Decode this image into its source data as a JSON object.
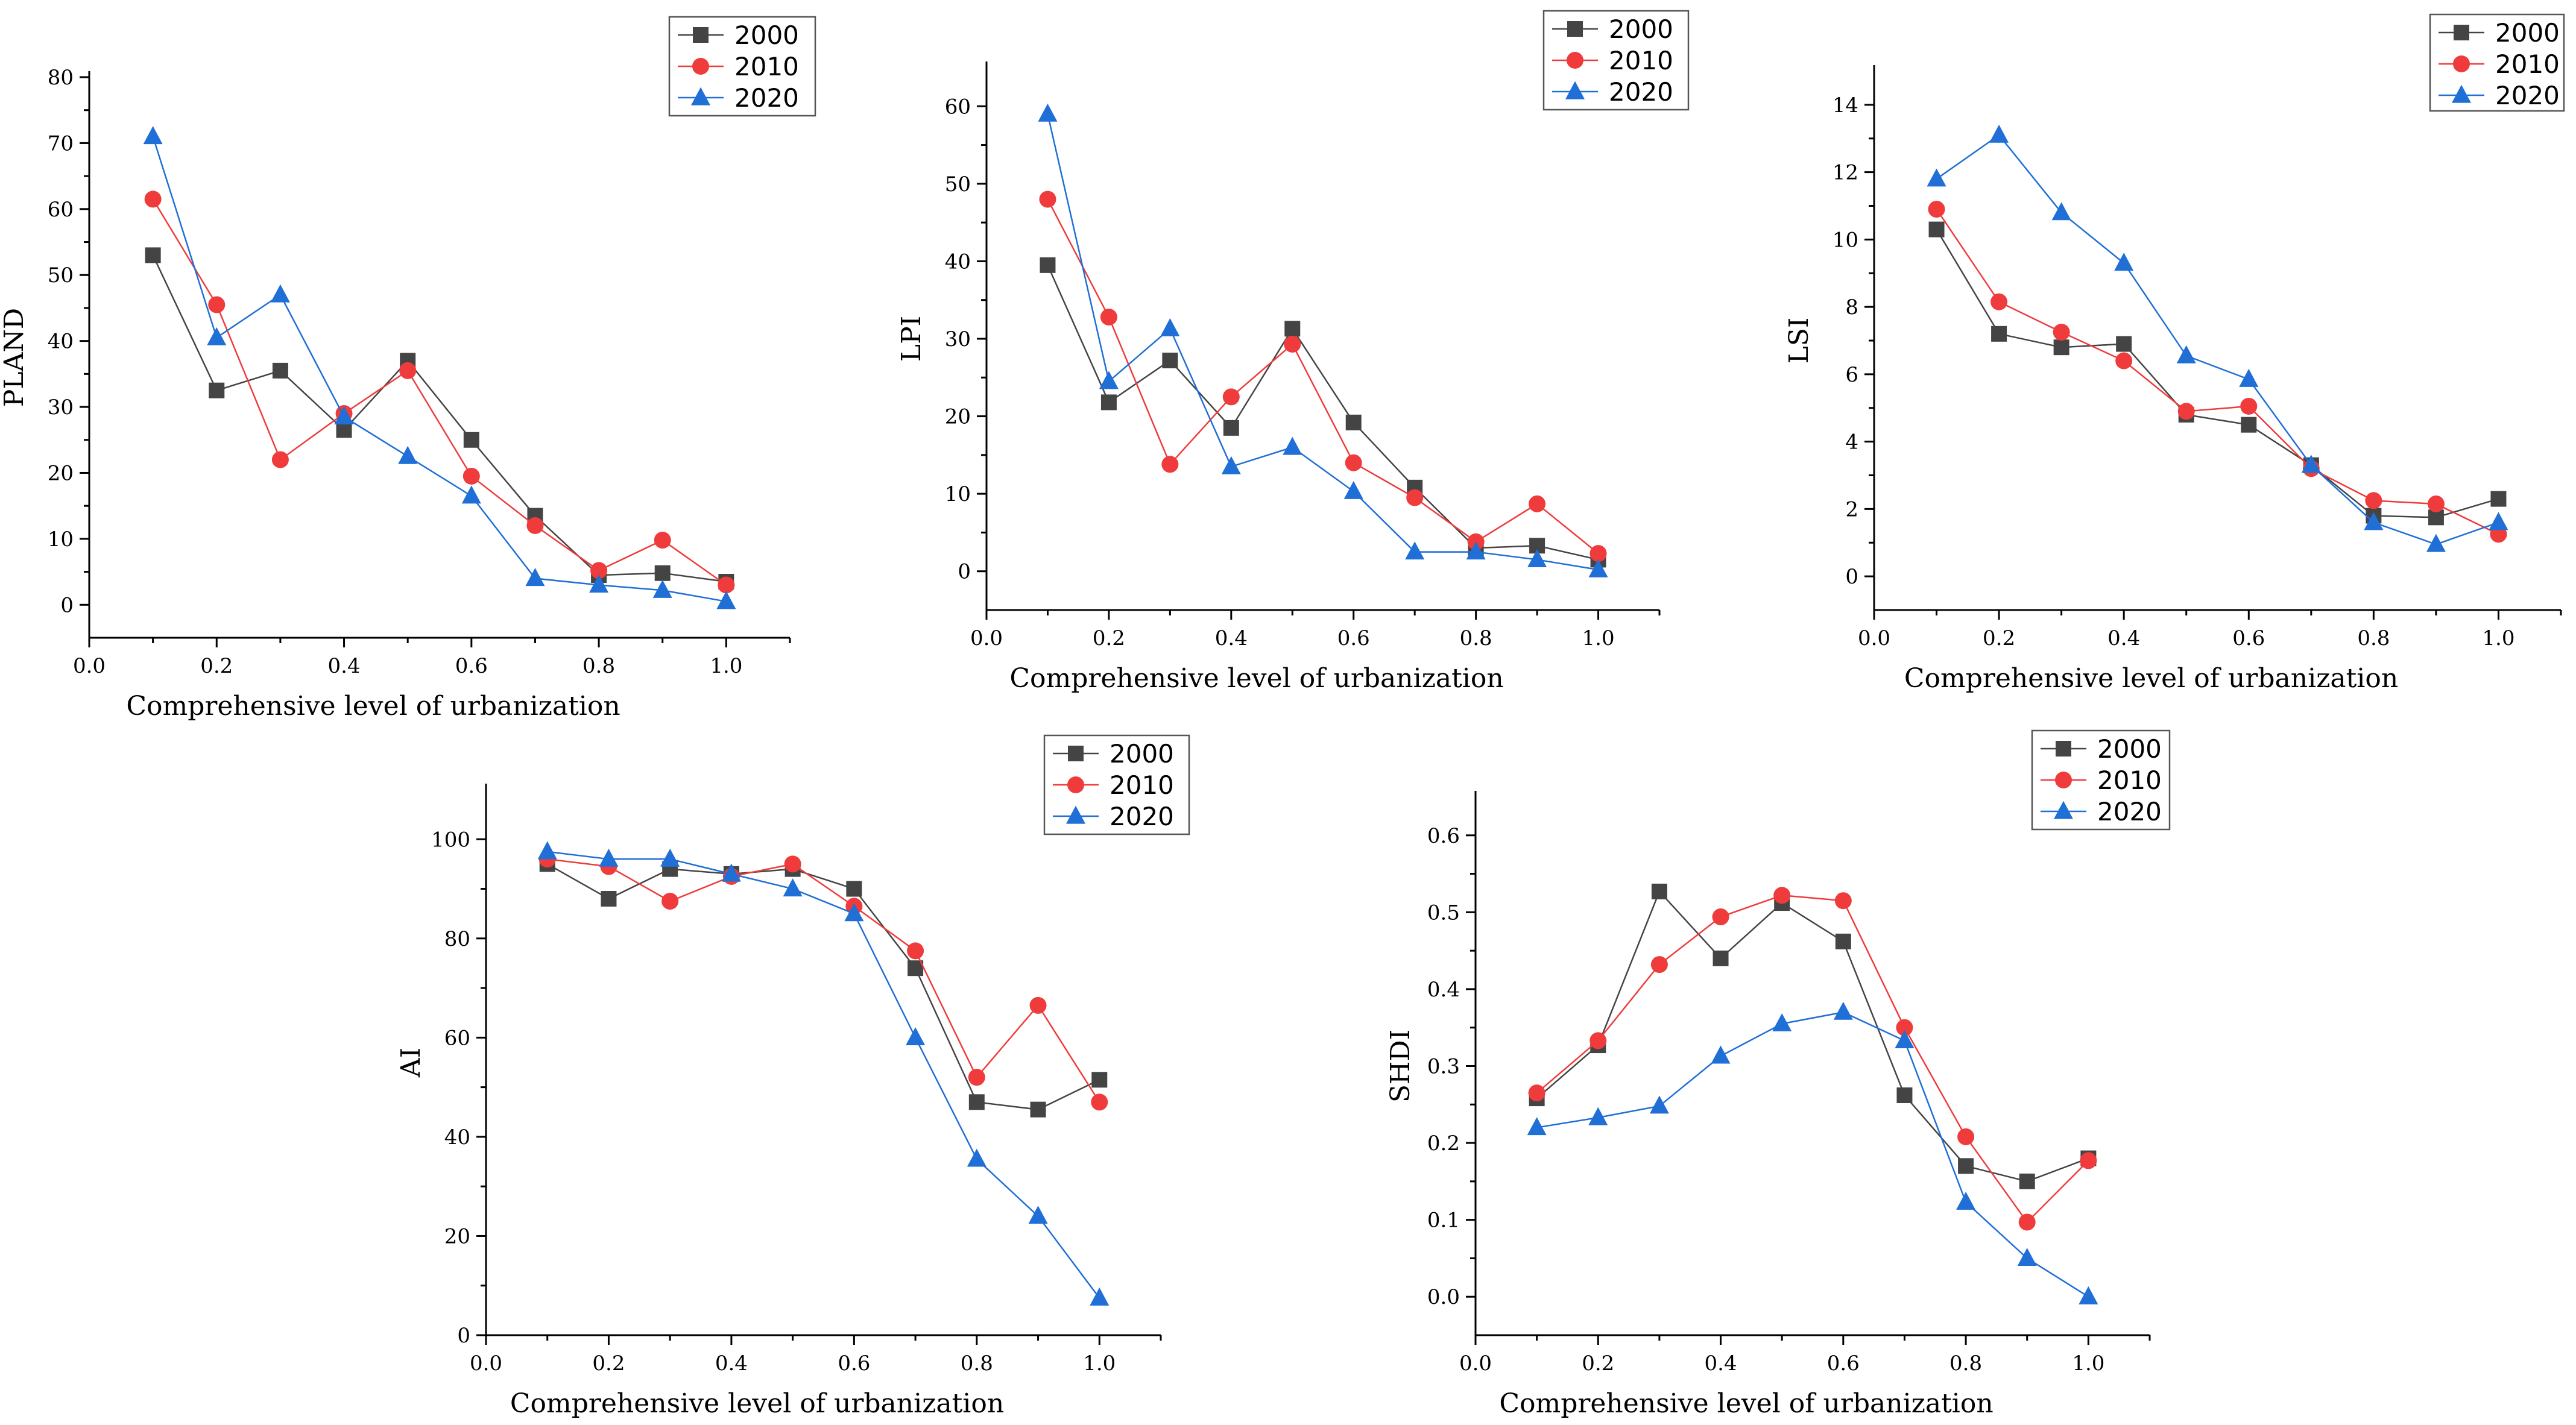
{
  "colors": {
    "2000": "#444444",
    "2010": "#ef3b3b",
    "2020": "#1f6fd6",
    "axis": "#000000"
  },
  "chart_data": [
    {
      "id": "pland",
      "type": "line",
      "title": "",
      "xlabel": "Comprehensive level of urbanization",
      "ylabel": "PLAND",
      "xlim": [
        0.0,
        1.1
      ],
      "ylim": [
        -5,
        80
      ],
      "xticks": [
        0.0,
        0.2,
        0.4,
        0.6,
        0.8,
        1.0
      ],
      "xtick_labels": [
        "0.0",
        "0.2",
        "0.4",
        "0.6",
        "0.8",
        "1.0"
      ],
      "yticks": [
        0,
        10,
        20,
        30,
        40,
        50,
        60,
        70,
        80
      ],
      "ytick_labels": [
        "0",
        "10",
        "20",
        "30",
        "40",
        "50",
        "60",
        "70",
        "80"
      ],
      "legend_position": "top-right",
      "x": [
        0.1,
        0.2,
        0.3,
        0.4,
        0.5,
        0.6,
        0.7,
        0.8,
        0.9,
        1.0
      ],
      "series": [
        {
          "name": "2000",
          "marker": "square",
          "values": [
            53,
            32.5,
            35.5,
            26.5,
            37,
            25,
            13.5,
            4.5,
            4.8,
            3.5
          ]
        },
        {
          "name": "2010",
          "marker": "circle",
          "values": [
            61.5,
            45.5,
            22,
            29,
            35.5,
            19.5,
            12,
            5.2,
            9.8,
            3
          ]
        },
        {
          "name": "2020",
          "marker": "triangle",
          "values": [
            71,
            40.5,
            47,
            28.5,
            22.5,
            16.5,
            4,
            3,
            2.2,
            0.5
          ]
        }
      ]
    },
    {
      "id": "lpi",
      "type": "line",
      "title": "",
      "xlabel": "Comprehensive level of urbanization",
      "ylabel": "LPI",
      "xlim": [
        0.0,
        1.1
      ],
      "ylim": [
        -5,
        65
      ],
      "xticks": [
        0.0,
        0.2,
        0.4,
        0.6,
        0.8,
        1.0
      ],
      "xtick_labels": [
        "0.0",
        "0.2",
        "0.4",
        "0.6",
        "0.8",
        "1.0"
      ],
      "yticks": [
        0,
        10,
        20,
        30,
        40,
        50,
        60
      ],
      "ytick_labels": [
        "0",
        "10",
        "20",
        "30",
        "40",
        "50",
        "60"
      ],
      "legend_position": "top-right",
      "x": [
        0.1,
        0.2,
        0.3,
        0.4,
        0.5,
        0.6,
        0.7,
        0.8,
        0.9,
        1.0
      ],
      "series": [
        {
          "name": "2000",
          "marker": "square",
          "values": [
            39.5,
            21.8,
            27.2,
            18.5,
            31.3,
            19.2,
            10.8,
            3,
            3.3,
            1.5
          ]
        },
        {
          "name": "2010",
          "marker": "circle",
          "values": [
            48,
            32.8,
            13.8,
            22.5,
            29.3,
            14,
            9.5,
            3.8,
            8.7,
            2.3
          ]
        },
        {
          "name": "2020",
          "marker": "triangle",
          "values": [
            59,
            24.5,
            31.3,
            13.5,
            16,
            10.3,
            2.5,
            2.5,
            1.5,
            0.2
          ]
        }
      ]
    },
    {
      "id": "lsi",
      "type": "line",
      "title": "",
      "xlabel": "Comprehensive level of urbanization",
      "ylabel": "LSI",
      "xlim": [
        0.0,
        1.1
      ],
      "ylim": [
        -1,
        15
      ],
      "xticks": [
        0.0,
        0.2,
        0.4,
        0.6,
        0.8,
        1.0
      ],
      "xtick_labels": [
        "0.0",
        "0.2",
        "0.4",
        "0.6",
        "0.8",
        "1.0"
      ],
      "yticks": [
        0,
        2,
        4,
        6,
        8,
        10,
        12,
        14
      ],
      "ytick_labels": [
        "0",
        "2",
        "4",
        "6",
        "8",
        "10",
        "12",
        "14"
      ],
      "legend_position": "top-right",
      "x": [
        0.1,
        0.2,
        0.3,
        0.4,
        0.5,
        0.6,
        0.7,
        0.8,
        0.9,
        1.0
      ],
      "series": [
        {
          "name": "2000",
          "marker": "square",
          "values": [
            10.3,
            7.2,
            6.8,
            6.9,
            4.8,
            4.5,
            3.3,
            1.8,
            1.75,
            2.3
          ]
        },
        {
          "name": "2010",
          "marker": "circle",
          "values": [
            10.9,
            8.15,
            7.25,
            6.4,
            4.9,
            5.05,
            3.2,
            2.25,
            2.15,
            1.25
          ]
        },
        {
          "name": "2020",
          "marker": "triangle",
          "values": [
            11.8,
            13.1,
            10.8,
            9.3,
            6.55,
            5.85,
            3.3,
            1.6,
            0.95,
            1.6
          ]
        }
      ]
    },
    {
      "id": "ai",
      "type": "line",
      "title": "",
      "xlabel": "Comprehensive level of urbanization",
      "ylabel": "AI",
      "xlim": [
        0.0,
        1.1
      ],
      "ylim": [
        0,
        110
      ],
      "xticks": [
        0.0,
        0.2,
        0.4,
        0.6,
        0.8,
        1.0
      ],
      "xtick_labels": [
        "0.0",
        "0.2",
        "0.4",
        "0.6",
        "0.8",
        "1.0"
      ],
      "yticks": [
        0,
        20,
        40,
        60,
        80,
        100
      ],
      "ytick_labels": [
        "0",
        "20",
        "40",
        "60",
        "80",
        "100"
      ],
      "legend_position": "top-right",
      "x": [
        0.1,
        0.2,
        0.3,
        0.4,
        0.5,
        0.6,
        0.7,
        0.8,
        0.9,
        1.0
      ],
      "series": [
        {
          "name": "2000",
          "marker": "square",
          "values": [
            95,
            88,
            94,
            93,
            94,
            90,
            74,
            47,
            45.5,
            51.5
          ]
        },
        {
          "name": "2010",
          "marker": "circle",
          "values": [
            96,
            94.5,
            87.5,
            92.5,
            95,
            86.5,
            77.5,
            52,
            66.5,
            47
          ]
        },
        {
          "name": "2020",
          "marker": "triangle",
          "values": [
            97.5,
            96,
            96,
            93,
            90,
            85,
            60,
            35.5,
            24,
            7.5
          ]
        }
      ]
    },
    {
      "id": "shdi",
      "type": "line",
      "title": "",
      "xlabel": "Comprehensive level of urbanization",
      "ylabel": "SHDI",
      "xlim": [
        0.0,
        1.1
      ],
      "ylim": [
        -0.05,
        0.65
      ],
      "xticks": [
        0.0,
        0.2,
        0.4,
        0.6,
        0.8,
        1.0
      ],
      "xtick_labels": [
        "0.0",
        "0.2",
        "0.4",
        "0.6",
        "0.8",
        "1.0"
      ],
      "yticks": [
        0.0,
        0.1,
        0.2,
        0.3,
        0.4,
        0.5,
        0.6
      ],
      "ytick_labels": [
        "0.0",
        "0.1",
        "0.2",
        "0.3",
        "0.4",
        "0.5",
        "0.6"
      ],
      "legend_position": "top-right",
      "x": [
        0.1,
        0.2,
        0.3,
        0.4,
        0.5,
        0.6,
        0.7,
        0.8,
        0.9,
        1.0
      ],
      "series": [
        {
          "name": "2000",
          "marker": "square",
          "values": [
            0.258,
            0.327,
            0.527,
            0.44,
            0.512,
            0.462,
            0.262,
            0.17,
            0.15,
            0.18
          ]
        },
        {
          "name": "2010",
          "marker": "circle",
          "values": [
            0.265,
            0.333,
            0.432,
            0.494,
            0.522,
            0.515,
            0.35,
            0.208,
            0.097,
            0.177
          ]
        },
        {
          "name": "2020",
          "marker": "triangle",
          "values": [
            0.22,
            0.233,
            0.248,
            0.313,
            0.355,
            0.37,
            0.333,
            0.123,
            0.05,
            0.0
          ]
        }
      ]
    }
  ]
}
